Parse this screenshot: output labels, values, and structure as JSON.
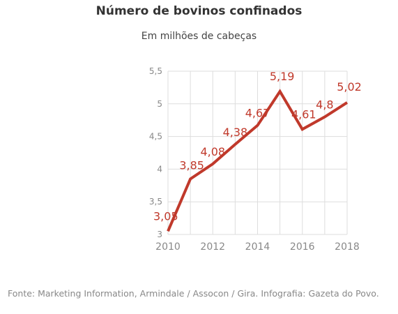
{
  "title": "Número de bovinos confinados",
  "subtitle": "Em milhões de cabeças",
  "source": "Fonte: Marketing Information, Armindale / Assocon / Gira. Infografia: Gazeta do Povo.",
  "colors": {
    "line": "#c0392b",
    "grid": "#dddddd",
    "tick_text": "#888888",
    "label": "#c0392b"
  },
  "chart_data": {
    "type": "line",
    "title": "Número de bovinos confinados",
    "subtitle": "Em milhões de cabeças",
    "x": [
      2010,
      2011,
      2012,
      2013,
      2014,
      2015,
      2016,
      2017,
      2018
    ],
    "values": [
      3.05,
      3.85,
      4.08,
      4.38,
      4.67,
      5.19,
      4.61,
      4.8,
      5.02
    ],
    "data_labels": [
      "3,05",
      "3,85",
      "4,08",
      "4,38",
      "4,67",
      "5,19",
      "4,61",
      "4,8",
      "5,02"
    ],
    "xticks": [
      2010,
      2012,
      2014,
      2016,
      2018
    ],
    "xtick_labels": [
      "2010",
      "2012",
      "2014",
      "2016",
      "2018"
    ],
    "yticks": [
      3,
      3.5,
      4,
      4.5,
      5,
      5.5
    ],
    "ytick_labels": [
      "3",
      "3,5",
      "4",
      "4,5",
      "5",
      "5,5"
    ],
    "xlim": [
      2010,
      2018
    ],
    "ylim": [
      3,
      5.5
    ],
    "grid": true
  }
}
